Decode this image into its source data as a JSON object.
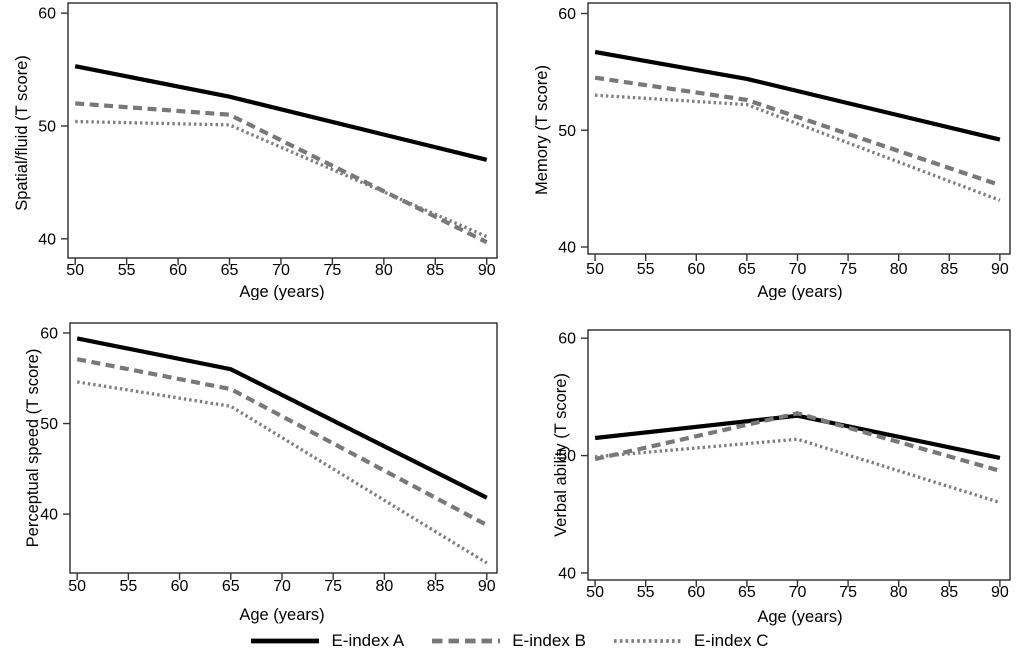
{
  "legend": {
    "items": [
      {
        "label": "E-index A",
        "line_style": "solid",
        "color": "#000000"
      },
      {
        "label": "E-index B",
        "line_style": "dashed",
        "color": "#787878"
      },
      {
        "label": "E-index C",
        "line_style": "dotted",
        "color": "#7e7e7e"
      }
    ]
  },
  "chart_data": [
    {
      "type": "line",
      "title": "",
      "xlabel": "Age (years)",
      "ylabel": "Spatial/fluid (T score)",
      "x": [
        50,
        65,
        90
      ],
      "series": [
        {
          "name": "E-index A",
          "values": [
            55.3,
            52.6,
            47.0
          ]
        },
        {
          "name": "E-index B",
          "values": [
            52.0,
            51.0,
            39.7
          ]
        },
        {
          "name": "E-index C",
          "values": [
            50.4,
            50.1,
            40.2
          ]
        }
      ],
      "xticks": [
        50,
        55,
        60,
        65,
        70,
        75,
        80,
        85,
        90
      ],
      "yticks": [
        40,
        50,
        60
      ],
      "xlim": [
        49.3,
        91.0
      ],
      "ylim": [
        38.3,
        60.9
      ],
      "grid": false,
      "legend_position": "bottom"
    },
    {
      "type": "line",
      "title": "",
      "xlabel": "Age (years)",
      "ylabel": "Memory (T score)",
      "x": [
        50,
        65,
        90
      ],
      "series": [
        {
          "name": "E-index A",
          "values": [
            56.7,
            54.4,
            49.2
          ]
        },
        {
          "name": "E-index B",
          "values": [
            54.5,
            52.6,
            45.3
          ]
        },
        {
          "name": "E-index C",
          "values": [
            53.0,
            52.2,
            44.0
          ]
        }
      ],
      "xticks": [
        50,
        55,
        60,
        65,
        70,
        75,
        80,
        85,
        90
      ],
      "yticks": [
        40,
        50,
        60
      ],
      "xlim": [
        49.3,
        91.0
      ],
      "ylim": [
        39.4,
        60.9
      ],
      "grid": false,
      "legend_position": "bottom"
    },
    {
      "type": "line",
      "title": "",
      "xlabel": "Age (years)",
      "ylabel": "Perceptual speed (T score)",
      "x": [
        50,
        65,
        90
      ],
      "series": [
        {
          "name": "E-index A",
          "values": [
            59.4,
            56.0,
            41.8
          ]
        },
        {
          "name": "E-index B",
          "values": [
            57.1,
            53.8,
            38.8
          ]
        },
        {
          "name": "E-index C",
          "values": [
            54.6,
            51.9,
            34.6
          ]
        }
      ],
      "xticks": [
        50,
        55,
        60,
        65,
        70,
        75,
        80,
        85,
        90
      ],
      "yticks": [
        40,
        50,
        60
      ],
      "xlim": [
        49.3,
        91.0
      ],
      "ylim": [
        33.5,
        61.1
      ],
      "grid": false,
      "legend_position": "bottom"
    },
    {
      "type": "line",
      "title": "",
      "xlabel": "Age (years)",
      "ylabel": "Verbal ability (T score)",
      "x": [
        50,
        70,
        90
      ],
      "series": [
        {
          "name": "E-index A",
          "values": [
            51.5,
            53.4,
            49.8
          ]
        },
        {
          "name": "E-index B",
          "values": [
            49.7,
            53.6,
            48.7
          ]
        },
        {
          "name": "E-index C",
          "values": [
            49.9,
            51.4,
            46.0
          ]
        }
      ],
      "xticks": [
        50,
        55,
        60,
        65,
        70,
        75,
        80,
        85,
        90
      ],
      "yticks": [
        40,
        50,
        60
      ],
      "xlim": [
        49.3,
        91.0
      ],
      "ylim": [
        39.4,
        60.7
      ],
      "grid": false,
      "legend_position": "bottom"
    }
  ]
}
